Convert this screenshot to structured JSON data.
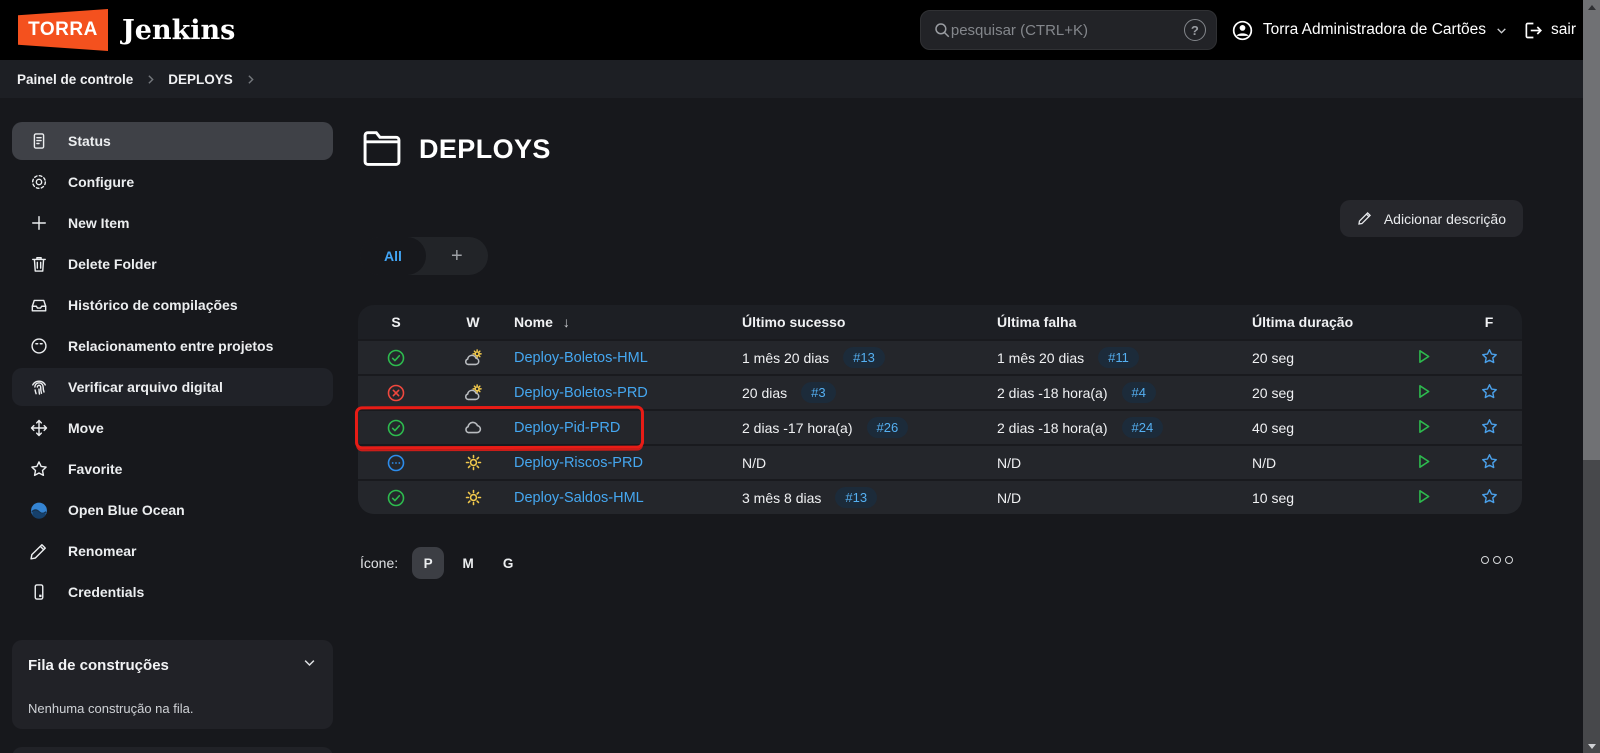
{
  "topbar": {
    "logo_text": "TORRA",
    "app_title": "Jenkins",
    "search_placeholder": "pesquisar (CTRL+K)",
    "help_glyph": "?",
    "user_name": "Torra Administradora de Cartões",
    "logout_label": "sair"
  },
  "breadcrumb": {
    "items": [
      "Painel de controle",
      "DEPLOYS"
    ]
  },
  "sidebar": {
    "items": [
      {
        "label": "Status",
        "icon": "document-icon",
        "selected": true
      },
      {
        "label": "Configure",
        "icon": "gear-icon"
      },
      {
        "label": "New Item",
        "icon": "plus-icon"
      },
      {
        "label": "Delete Folder",
        "icon": "trash-icon"
      },
      {
        "label": "Histórico de compilações",
        "icon": "build-history-icon"
      },
      {
        "label": "Relacionamento entre projetos",
        "icon": "relationship-icon"
      },
      {
        "label": "Verificar arquivo digital",
        "icon": "fingerprint-icon",
        "hover": true
      },
      {
        "label": "Move",
        "icon": "move-icon"
      },
      {
        "label": "Favorite",
        "icon": "star-icon"
      },
      {
        "label": "Open Blue Ocean",
        "icon": "blue-ocean-icon"
      },
      {
        "label": "Renomear",
        "icon": "pencil-icon"
      },
      {
        "label": "Credentials",
        "icon": "credentials-icon"
      }
    ],
    "build_queue": {
      "title": "Fila de construções",
      "empty_text": "Nenhuma construção na fila."
    }
  },
  "main": {
    "page_title": "DEPLOYS",
    "add_description_label": "Adicionar descrição",
    "tabs": {
      "active_label": "All",
      "add_label": "+"
    },
    "table": {
      "columns": [
        "S",
        "W",
        "Nome",
        "Último sucesso",
        "Última falha",
        "Última duração",
        "F"
      ],
      "sorted_column": "Nome",
      "sort_glyph": "↓",
      "rows": [
        {
          "status": "success",
          "weather": "partly-cloudy",
          "name": "Deploy-Boletos-HML",
          "last_success": "1 mês 20 dias",
          "success_build": "#13",
          "last_failure": "1 mês 20 dias",
          "failure_build": "#11",
          "duration": "20 seg"
        },
        {
          "status": "failure",
          "weather": "partly-cloudy",
          "name": "Deploy-Boletos-PRD",
          "last_success": "20 dias",
          "success_build": "#3",
          "last_failure": "2 dias -18 hora(a)",
          "failure_build": "#4",
          "duration": "20 seg"
        },
        {
          "status": "success",
          "weather": "cloudy",
          "name": "Deploy-Pid-PRD",
          "last_success": "2 dias -17 hora(a)",
          "success_build": "#26",
          "last_failure": "2 dias -18 hora(a)",
          "failure_build": "#24",
          "duration": "40 seg",
          "annotated": true
        },
        {
          "status": "pending",
          "weather": "sunny",
          "name": "Deploy-Riscos-PRD",
          "last_success": "N/D",
          "success_build": null,
          "last_failure": "N/D",
          "failure_build": null,
          "duration": "N/D"
        },
        {
          "status": "success",
          "weather": "sunny",
          "name": "Deploy-Saldos-HML",
          "last_success": "3 mês 8 dias",
          "success_build": "#13",
          "last_failure": "N/D",
          "failure_build": null,
          "duration": "10 seg"
        }
      ]
    },
    "icon_picker": {
      "label": "Ícone:",
      "options": [
        "P",
        "M",
        "G"
      ],
      "selected": "P"
    }
  },
  "colors": {
    "accent_orange": "#f4511e",
    "link_blue": "#42a5f5",
    "success_green": "#2dba4e",
    "failure_red": "#f0483e",
    "pending_blue": "#2d8ceb",
    "sun_yellow": "#f2c94c",
    "annotation_red": "#e81c16"
  }
}
